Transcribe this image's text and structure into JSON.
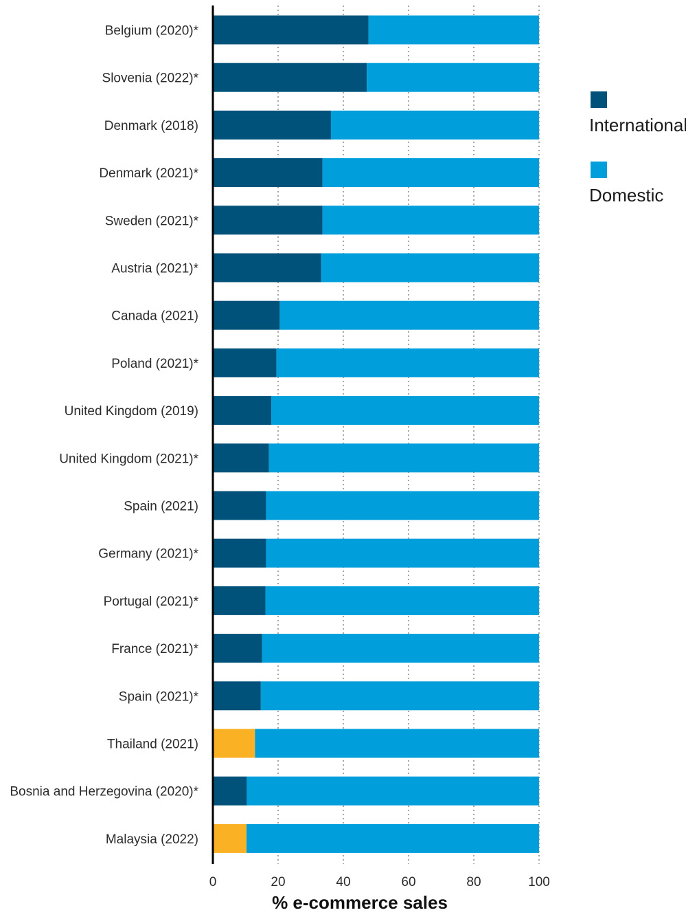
{
  "chart_data": {
    "type": "bar",
    "orientation": "horizontal",
    "stacked": true,
    "xlabel": "% e-commerce sales",
    "xlim": [
      0,
      100
    ],
    "xticks": [
      0,
      20,
      40,
      60,
      80,
      100
    ],
    "grid": "vertical dotted",
    "legend_position": "right",
    "categories": [
      "Belgium (2020)*",
      "Slovenia (2022)*",
      "Denmark (2018)",
      "Denmark (2021)*",
      "Sweden (2021)*",
      "Austria (2021)*",
      "Canada (2021)",
      "Poland (2021)*",
      "United Kingdom (2019)",
      "United Kingdom (2021)*",
      "Spain (2021)",
      "Germany (2021)*",
      "Portugal (2021)*",
      "France (2021)*",
      "Spain (2021)*",
      "Thailand (2021)",
      "Bosnia and Herzegovina (2020)*",
      "Malaysia (2022)"
    ],
    "series": [
      {
        "name": "International",
        "color": "#00527a",
        "highlight_color": "#fbb124",
        "highlight_categories": [
          "Thailand (2021)",
          "Malaysia (2022)"
        ],
        "values": [
          47.7,
          47.2,
          36.2,
          33.6,
          33.6,
          33.2,
          20.5,
          19.5,
          17.9,
          17.2,
          16.3,
          16.3,
          16.1,
          15.1,
          14.7,
          12.9,
          10.4,
          10.3
        ]
      },
      {
        "name": "Domestic",
        "color": "#009fdb",
        "values": [
          52.3,
          52.8,
          63.8,
          66.4,
          66.4,
          66.8,
          79.5,
          80.5,
          82.1,
          82.8,
          83.7,
          83.7,
          83.9,
          84.9,
          85.3,
          87.1,
          89.6,
          89.7
        ]
      }
    ]
  }
}
